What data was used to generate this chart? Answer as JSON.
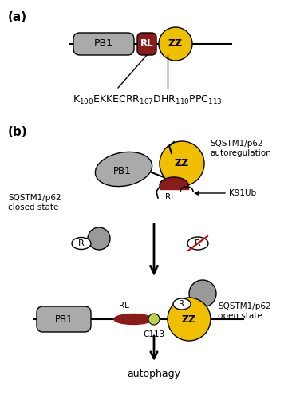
{
  "fig_width": 3.71,
  "fig_height": 5.0,
  "bg_color": "#ffffff",
  "panel_a_label": "(a)",
  "panel_b_label": "(b)",
  "pb1_color": "#aaaaaa",
  "rl_color": "#8b1a1a",
  "zz_color": "#f0c000",
  "gray_color": "#999999",
  "black": "#000000",
  "red_cross": "#cc0000",
  "label_closed": "SQSTM1/p62\nclosed state",
  "label_open": "SQSTM1/p62\nopen state",
  "label_autoreg": "SQSTM1/p62\nautoregulation",
  "label_k91": "K91Ub",
  "label_c113": "C113",
  "label_rl": "RL",
  "label_autophagy": "autophagy",
  "label_zz": "ZZ",
  "label_pb1": "PB1",
  "label_r": "R",
  "lime_color": "#b8d44a"
}
